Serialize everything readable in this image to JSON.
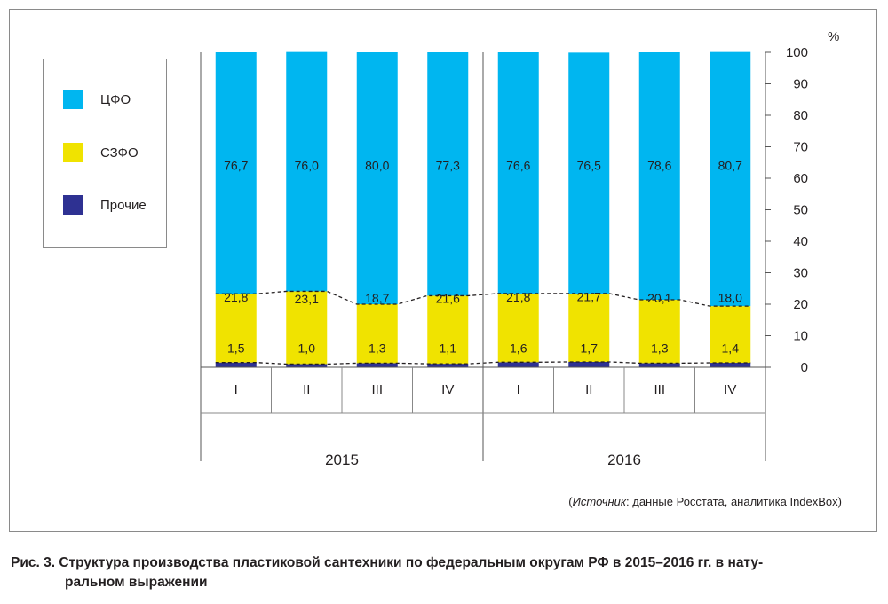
{
  "chart_data": {
    "type": "bar",
    "stacked": true,
    "y_unit": "%",
    "ylim": [
      0,
      100
    ],
    "y_ticks": [
      0,
      10,
      20,
      30,
      40,
      50,
      60,
      70,
      80,
      90,
      100
    ],
    "categories": [
      "I",
      "II",
      "III",
      "IV",
      "I",
      "II",
      "III",
      "IV"
    ],
    "groups": [
      {
        "label": "2015",
        "count": 4
      },
      {
        "label": "2016",
        "count": 4
      }
    ],
    "series": [
      {
        "name": "Прочие",
        "color": "#2e3192",
        "values": [
          1.5,
          1.0,
          1.3,
          1.1,
          1.6,
          1.7,
          1.3,
          1.4
        ],
        "labels": [
          "1,5",
          "1,0",
          "1,3",
          "1,1",
          "1,6",
          "1,7",
          "1,3",
          "1,4"
        ]
      },
      {
        "name": "СЗФО",
        "color": "#f0e300",
        "values": [
          21.8,
          23.1,
          18.7,
          21.6,
          21.8,
          21.7,
          20.1,
          18.0
        ],
        "labels": [
          "21,8",
          "23,1",
          "18,7",
          "21,6",
          "21,8",
          "21,7",
          "20,1",
          "18,0"
        ]
      },
      {
        "name": "ЦФО",
        "color": "#00b6f0",
        "values": [
          76.7,
          76.0,
          80.0,
          77.3,
          76.6,
          76.5,
          78.6,
          80.7
        ],
        "labels": [
          "76,7",
          "76,0",
          "80,0",
          "77,3",
          "76,6",
          "76,5",
          "78,6",
          "80,7"
        ]
      }
    ],
    "grid": false,
    "legend_position": "left",
    "legend_order": [
      "ЦФО",
      "СЗФО",
      "Прочие"
    ]
  },
  "source": {
    "prefix": "(",
    "emph": "Источник",
    "rest": ": данные Росстата, аналитика IndexBox)"
  },
  "caption": {
    "line1": "Рис. 3. Структура производства пластиковой сантехники по федеральным округам РФ в 2015–2016 гг. в нату-",
    "line2": "ральном выражении"
  }
}
